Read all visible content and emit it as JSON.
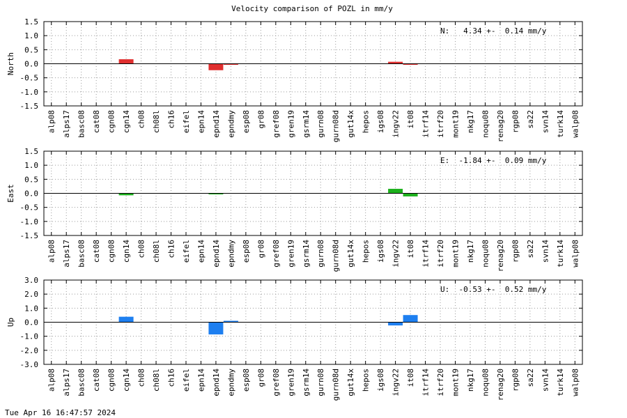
{
  "chart_data": {
    "type": "bar",
    "title": "Velocity comparison of POZL in mm/y",
    "categories": [
      "alp08",
      "alps17",
      "basc08",
      "cat08",
      "cgn08",
      "cgn14",
      "ch08",
      "ch08l",
      "ch16",
      "eifel",
      "epn14",
      "epnd14",
      "epndmy",
      "esp08",
      "gr08",
      "gref08",
      "gren19",
      "gsrm14",
      "gurn08",
      "gurn08d",
      "gut14x",
      "hepos",
      "igs08",
      "ingv22",
      "it08",
      "itrf14",
      "itrf20",
      "mont19",
      "nkg17",
      "noqu08",
      "renag20",
      "rgp08",
      "sa22",
      "svn14",
      "turk14",
      "walp08"
    ],
    "panels": [
      {
        "ylabel": "North",
        "ylim": [
          -1.5,
          1.5
        ],
        "yticks": [
          "1.5",
          "1.0",
          "0.5",
          "0.0",
          "-0.5",
          "-1.0",
          "-1.5"
        ],
        "ytick_values": [
          1.5,
          1.0,
          0.5,
          0.0,
          -0.5,
          -1.0,
          -1.5
        ],
        "color": "#e02f2f",
        "annotation": "N:   4.34 +-  0.14 mm/y",
        "values": [
          0,
          0,
          0,
          0,
          0,
          0.16,
          0,
          0,
          0,
          0,
          0,
          -0.23,
          -0.02,
          0,
          0,
          0,
          0,
          0,
          0,
          0,
          0,
          0,
          0,
          0.07,
          -0.02,
          0,
          0,
          0,
          0,
          0,
          0,
          0,
          0,
          0,
          0,
          0
        ]
      },
      {
        "ylabel": "East",
        "ylim": [
          -1.5,
          1.5
        ],
        "yticks": [
          "1.5",
          "1.0",
          "0.5",
          "0.0",
          "-0.5",
          "-1.0",
          "-1.5"
        ],
        "ytick_values": [
          1.5,
          1.0,
          0.5,
          0.0,
          -0.5,
          -1.0,
          -1.5
        ],
        "color": "#1cb01c",
        "annotation": "E:  -1.84 +-  0.09 mm/y",
        "values": [
          0,
          0,
          0,
          0,
          0,
          -0.07,
          0,
          0,
          0,
          0,
          0,
          -0.03,
          0,
          0,
          0,
          0,
          0,
          0,
          0,
          0,
          0,
          0,
          0,
          0.16,
          -0.11,
          0,
          0,
          0,
          0,
          0,
          0,
          0,
          0,
          0,
          0,
          0
        ]
      },
      {
        "ylabel": "Up",
        "ylim": [
          -3.0,
          3.0
        ],
        "yticks": [
          "3.0",
          "2.0",
          "1.0",
          "0.0",
          "-1.0",
          "-2.0",
          "-3.0"
        ],
        "ytick_values": [
          3.0,
          2.0,
          1.0,
          0.0,
          -1.0,
          -2.0,
          -3.0
        ],
        "color": "#1e7ff0",
        "annotation": "U:  -0.53 +-  0.52 mm/y",
        "values": [
          0,
          0,
          0,
          0,
          0,
          0.39,
          0,
          0,
          0,
          0,
          0,
          -0.87,
          0.1,
          0,
          0,
          0,
          0,
          0,
          0,
          0,
          0,
          0,
          0,
          -0.23,
          0.51,
          0,
          0,
          0,
          0,
          0,
          0,
          0,
          0,
          0,
          0,
          0
        ]
      }
    ],
    "grid": true
  },
  "footer": "Tue Apr 16 16:47:57 2024"
}
